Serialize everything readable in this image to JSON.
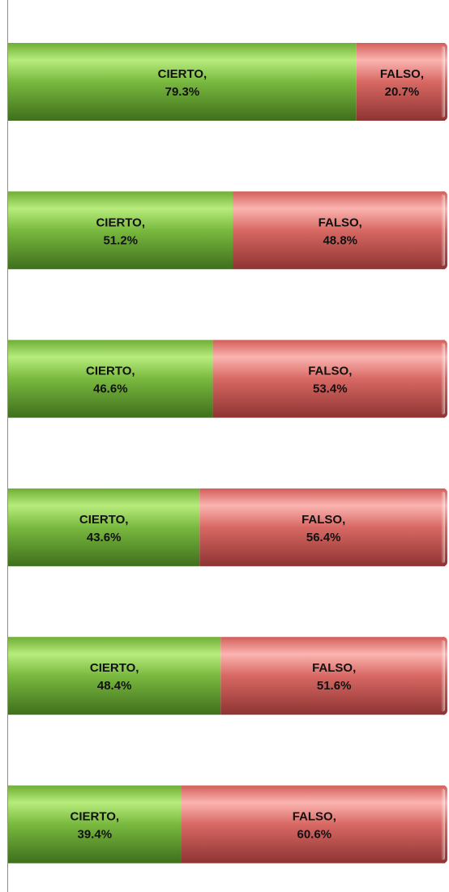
{
  "chart_data": {
    "type": "bar",
    "orientation": "horizontal",
    "stacked": "100%",
    "title": "",
    "xlabel": "",
    "ylabel": "",
    "xlim": [
      0,
      100
    ],
    "grid": false,
    "legend": "none",
    "categories": [
      "",
      "",
      "",
      "",
      "",
      ""
    ],
    "series": [
      {
        "name": "CIERTO",
        "color": "#5d9a2f",
        "values": [
          79.3,
          51.2,
          46.6,
          43.6,
          48.4,
          39.4
        ],
        "labels_line1": [
          "CIERTO,",
          "CIERTO,",
          "CIERTO,",
          "CIERTO,",
          "CIERTO,",
          "CIERTO,"
        ],
        "labels_line2": [
          "79.3%",
          "51.2%",
          "46.6%",
          "43.6%",
          "48.4%",
          "39.4%"
        ]
      },
      {
        "name": "FALSO",
        "color": "#d9534f",
        "values": [
          20.7,
          48.8,
          53.4,
          56.4,
          51.6,
          60.6
        ],
        "labels_line1": [
          "FALSO,",
          "FALSO,",
          "FALSO,",
          "FALSO,",
          "FALSO,",
          "FALSO,"
        ],
        "labels_line2": [
          "20.7%",
          "48.8%",
          "53.4%",
          "56.4%",
          "51.6%",
          "60.6%"
        ]
      }
    ]
  }
}
